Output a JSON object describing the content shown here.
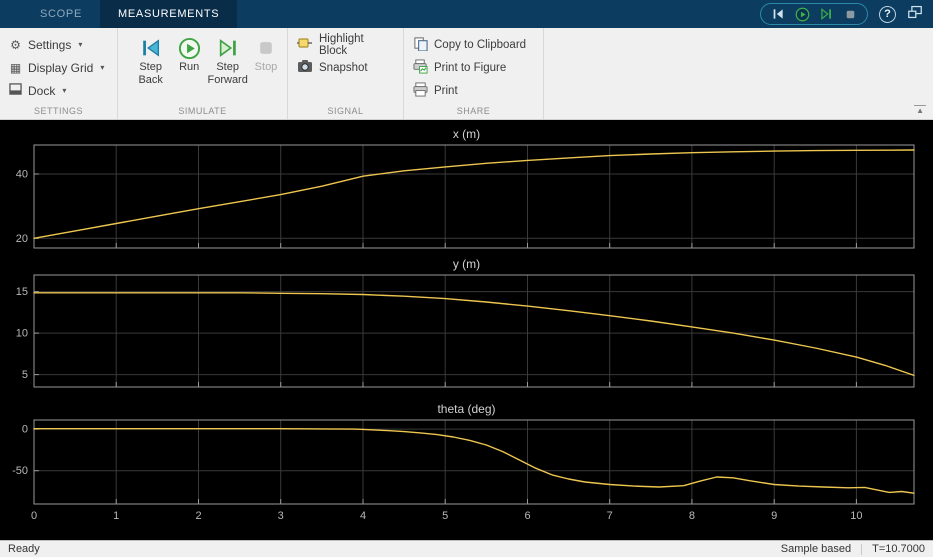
{
  "title_bar": {
    "tabs": [
      {
        "label": "SCOPE",
        "active": false
      },
      {
        "label": "MEASUREMENTS",
        "active": true
      }
    ],
    "help_label": "?"
  },
  "glyphs": {
    "gear": "⚙",
    "grid": "▦",
    "dropdown": "▾",
    "collapse": "▲"
  },
  "toolbar": {
    "settings": {
      "section_label": "SETTINGS",
      "settings_label": "Settings",
      "display_grid_label": "Display Grid",
      "dock_label": "Dock"
    },
    "simulate": {
      "section_label": "SIMULATE",
      "step_back_label": "Step Back",
      "run_label": "Run",
      "step_forward_label": "Step Forward",
      "stop_label": "Stop"
    },
    "signal": {
      "section_label": "SIGNAL",
      "highlight_label": "Highlight Block",
      "snapshot_label": "Snapshot"
    },
    "share": {
      "section_label": "SHARE",
      "copy_label": "Copy to Clipboard",
      "print_figure_label": "Print to Figure",
      "print_label": "Print"
    }
  },
  "colors": {
    "line": "#edc64f",
    "titlebar": "#0c3c5f",
    "active_tab": "#092c49",
    "plot_bg": "#000000",
    "grid": "#3a3a3a",
    "axis_box": "#9a9a9a",
    "tick_text": "#b8b8b8",
    "run_green": "#44a642",
    "step_teal": "#2596b8"
  },
  "chart_data": [
    {
      "type": "line",
      "title": "x (m)",
      "xlim": [
        0,
        10.7
      ],
      "ylim": [
        17,
        49
      ],
      "xticks": [
        0,
        1,
        2,
        3,
        4,
        5,
        6,
        7,
        8,
        9,
        10
      ],
      "yticks": [
        20,
        40
      ],
      "show_xlabels": false,
      "grid": true,
      "x": [
        0,
        0.5,
        1,
        1.5,
        2,
        2.5,
        3,
        3.5,
        4,
        4.5,
        5,
        5.5,
        6,
        6.5,
        7,
        7.5,
        8,
        8.5,
        9,
        9.5,
        10,
        10.35,
        10.7
      ],
      "y": [
        20,
        22.3,
        24.6,
        26.9,
        29.2,
        31.4,
        33.6,
        36.2,
        39.3,
        41.0,
        42.2,
        43.3,
        44.2,
        45.0,
        45.7,
        46.2,
        46.6,
        46.9,
        47.1,
        47.25,
        47.35,
        47.4,
        47.45
      ]
    },
    {
      "type": "line",
      "title": "y (m)",
      "xlim": [
        0,
        10.7
      ],
      "ylim": [
        3.5,
        17
      ],
      "xticks": [
        0,
        1,
        2,
        3,
        4,
        5,
        6,
        7,
        8,
        9,
        10
      ],
      "yticks": [
        5,
        10,
        15
      ],
      "show_xlabels": false,
      "grid": true,
      "x": [
        0,
        0.5,
        1,
        1.5,
        2,
        2.5,
        3,
        3.5,
        4,
        4.5,
        5,
        5.5,
        6,
        6.5,
        7,
        7.5,
        8,
        8.5,
        9,
        9.5,
        10,
        10.35,
        10.7
      ],
      "y": [
        14.85,
        14.85,
        14.85,
        14.85,
        14.85,
        14.85,
        14.8,
        14.75,
        14.65,
        14.45,
        14.15,
        13.75,
        13.25,
        12.7,
        12.1,
        11.45,
        10.75,
        10.0,
        9.15,
        8.2,
        7.1,
        6.1,
        4.9
      ]
    },
    {
      "type": "line",
      "title": "theta (deg)",
      "xlim": [
        0,
        10.7
      ],
      "ylim": [
        -90,
        11
      ],
      "xticks": [
        0,
        1,
        2,
        3,
        4,
        5,
        6,
        7,
        8,
        9,
        10
      ],
      "yticks": [
        0,
        -50
      ],
      "show_xlabels": true,
      "grid": true,
      "x": [
        0,
        0.5,
        1,
        1.5,
        2,
        2.5,
        3,
        3.5,
        3.9,
        4.1,
        4.3,
        4.5,
        4.7,
        4.9,
        5.1,
        5.3,
        5.5,
        5.7,
        5.9,
        6.1,
        6.3,
        6.5,
        6.7,
        7,
        7.3,
        7.6,
        7.9,
        8.1,
        8.3,
        8.5,
        8.7,
        9,
        9.3,
        9.6,
        9.9,
        10.1,
        10.25,
        10.4,
        10.55,
        10.7
      ],
      "y": [
        0.5,
        0.5,
        0.5,
        0.5,
        0.5,
        0.5,
        0.5,
        0.3,
        0,
        -0.8,
        -1.8,
        -3,
        -4.5,
        -6.5,
        -9.5,
        -13.5,
        -19,
        -27,
        -37,
        -47,
        -55,
        -60,
        -63.5,
        -66.5,
        -68.5,
        -69.5,
        -68,
        -62.5,
        -57.5,
        -58.5,
        -62,
        -66.5,
        -68.5,
        -69.5,
        -70.5,
        -70,
        -73,
        -76,
        -75,
        -77
      ]
    }
  ],
  "status_bar": {
    "left": "Ready",
    "sample_mode": "Sample based",
    "time": "T=10.7000"
  }
}
